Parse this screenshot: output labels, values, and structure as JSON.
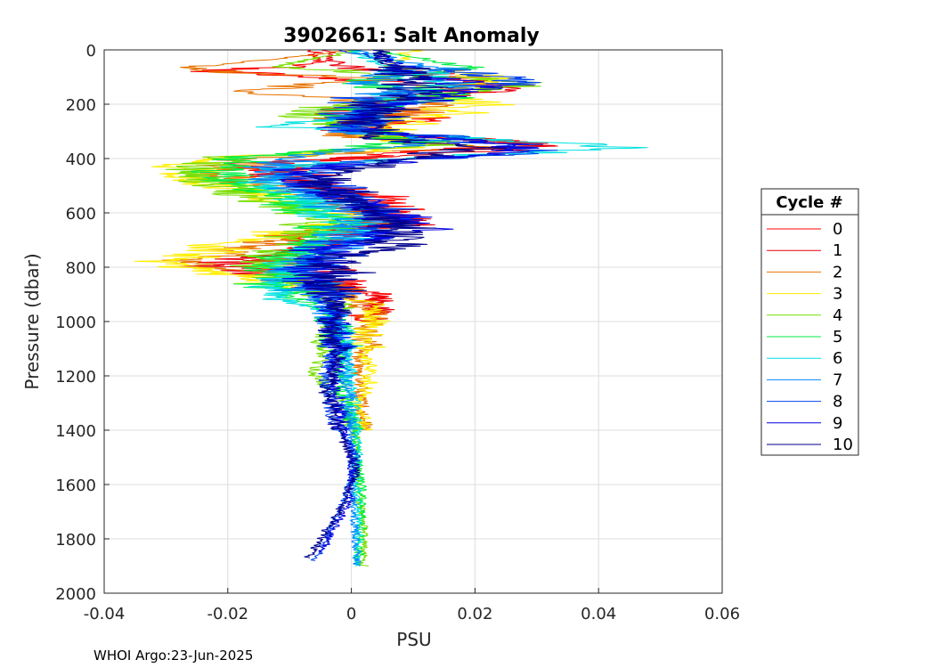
{
  "chart_data": {
    "type": "line",
    "title": "3902661: Salt Anomaly",
    "xlabel": "PSU",
    "ylabel": "Pressure (dbar)",
    "xlim": [
      -0.04,
      0.06
    ],
    "ylim": [
      0,
      2000
    ],
    "y_reversed": true,
    "grid": true,
    "x_ticks": [
      -0.04,
      -0.02,
      0,
      0.02,
      0.04,
      0.06
    ],
    "x_tick_labels": [
      "-0.04",
      "-0.02",
      "0",
      "0.02",
      "0.04",
      "0.06"
    ],
    "y_ticks": [
      0,
      200,
      400,
      600,
      800,
      1000,
      1200,
      1400,
      1600,
      1800,
      2000
    ],
    "y_tick_labels": [
      "0",
      "200",
      "400",
      "600",
      "800",
      "1000",
      "1200",
      "1400",
      "1600",
      "1800",
      "2000"
    ],
    "legend": {
      "title": "Cycle #",
      "placement": "outside-right"
    },
    "series": [
      {
        "name": "0",
        "color": "#ff0000",
        "max_pressure": 1000,
        "seed": 11,
        "points": [
          [
            0,
            -0.006
          ],
          [
            50,
            -0.005
          ],
          [
            80,
            -0.022
          ],
          [
            120,
            0.01
          ],
          [
            150,
            0.02
          ],
          [
            200,
            0.004
          ],
          [
            250,
            0.012
          ],
          [
            300,
            0.002
          ],
          [
            350,
            0.03
          ],
          [
            380,
            0.01
          ],
          [
            420,
            -0.012
          ],
          [
            480,
            -0.008
          ],
          [
            550,
            0.004
          ],
          [
            620,
            0.006
          ],
          [
            700,
            -0.008
          ],
          [
            760,
            -0.012
          ],
          [
            820,
            -0.004
          ],
          [
            880,
            0.002
          ],
          [
            920,
            0.004
          ],
          [
            1000,
            0.002
          ]
        ]
      },
      {
        "name": "1",
        "color": "#e8000b",
        "max_pressure": 1000,
        "seed": 23,
        "points": [
          [
            0,
            -0.004
          ],
          [
            60,
            -0.002
          ],
          [
            100,
            0.018
          ],
          [
            140,
            0.028
          ],
          [
            180,
            0.006
          ],
          [
            240,
            -0.004
          ],
          [
            300,
            0.0
          ],
          [
            350,
            0.032
          ],
          [
            380,
            0.015
          ],
          [
            420,
            -0.015
          ],
          [
            480,
            -0.01
          ],
          [
            560,
            0.003
          ],
          [
            640,
            0.008
          ],
          [
            720,
            -0.006
          ],
          [
            790,
            -0.02
          ],
          [
            850,
            -0.006
          ],
          [
            900,
            0.004
          ],
          [
            950,
            0.004
          ],
          [
            1000,
            0.003
          ]
        ]
      },
      {
        "name": "2",
        "color": "#e67300",
        "max_pressure": 1400,
        "seed": 37,
        "points": [
          [
            0,
            0.002
          ],
          [
            70,
            -0.028
          ],
          [
            110,
            0.006
          ],
          [
            150,
            -0.02
          ],
          [
            200,
            0.012
          ],
          [
            260,
            0.004
          ],
          [
            320,
            0.0
          ],
          [
            360,
            0.022
          ],
          [
            400,
            -0.018
          ],
          [
            460,
            -0.022
          ],
          [
            540,
            -0.006
          ],
          [
            620,
            0.004
          ],
          [
            700,
            -0.012
          ],
          [
            780,
            -0.028
          ],
          [
            840,
            -0.01
          ],
          [
            920,
            0.002
          ],
          [
            1000,
            0.004
          ],
          [
            1100,
            0.002
          ],
          [
            1250,
            0.001
          ],
          [
            1400,
            0.002
          ]
        ]
      },
      {
        "name": "3",
        "color": "#ffee00",
        "max_pressure": 1400,
        "seed": 41,
        "points": [
          [
            0,
            0.01
          ],
          [
            60,
            0.006
          ],
          [
            100,
            0.024
          ],
          [
            150,
            0.012
          ],
          [
            200,
            0.02
          ],
          [
            240,
            0.014
          ],
          [
            300,
            0.004
          ],
          [
            360,
            0.012
          ],
          [
            400,
            -0.024
          ],
          [
            460,
            -0.028
          ],
          [
            540,
            -0.014
          ],
          [
            620,
            0.0
          ],
          [
            700,
            -0.016
          ],
          [
            780,
            -0.03
          ],
          [
            850,
            -0.014
          ],
          [
            940,
            0.004
          ],
          [
            1050,
            0.002
          ],
          [
            1200,
            0.003
          ],
          [
            1300,
            0.001
          ],
          [
            1400,
            0.002
          ]
        ]
      },
      {
        "name": "4",
        "color": "#77dd00",
        "max_pressure": 1900,
        "seed": 53,
        "points": [
          [
            0,
            0.002
          ],
          [
            60,
            -0.012
          ],
          [
            120,
            0.03
          ],
          [
            180,
            0.008
          ],
          [
            230,
            -0.008
          ],
          [
            300,
            0.0
          ],
          [
            350,
            0.014
          ],
          [
            400,
            -0.022
          ],
          [
            460,
            -0.026
          ],
          [
            540,
            -0.016
          ],
          [
            620,
            -0.004
          ],
          [
            700,
            -0.008
          ],
          [
            780,
            -0.016
          ],
          [
            850,
            -0.01
          ],
          [
            940,
            -0.002
          ],
          [
            1050,
            -0.003
          ],
          [
            1190,
            -0.006
          ],
          [
            1300,
            -0.001
          ],
          [
            1450,
            0.001
          ],
          [
            1600,
            0.001
          ],
          [
            1750,
            0.002
          ],
          [
            1900,
            0.002
          ]
        ]
      },
      {
        "name": "5",
        "color": "#00ee44",
        "max_pressure": 1900,
        "seed": 67,
        "points": [
          [
            0,
            0.004
          ],
          [
            70,
            0.02
          ],
          [
            120,
            0.002
          ],
          [
            170,
            0.016
          ],
          [
            220,
            0.0
          ],
          [
            290,
            0.002
          ],
          [
            340,
            0.01
          ],
          [
            400,
            -0.018
          ],
          [
            470,
            -0.022
          ],
          [
            540,
            -0.012
          ],
          [
            620,
            -0.002
          ],
          [
            700,
            -0.004
          ],
          [
            780,
            -0.01
          ],
          [
            860,
            -0.014
          ],
          [
            950,
            -0.004
          ],
          [
            1050,
            -0.002
          ],
          [
            1200,
            -0.002
          ],
          [
            1350,
            0.0
          ],
          [
            1500,
            0.001
          ],
          [
            1700,
            0.002
          ],
          [
            1900,
            0.001
          ]
        ]
      },
      {
        "name": "6",
        "color": "#00e0e0",
        "max_pressure": 1900,
        "seed": 79,
        "points": [
          [
            0,
            0.0
          ],
          [
            60,
            0.006
          ],
          [
            120,
            0.018
          ],
          [
            180,
            0.004
          ],
          [
            240,
            0.006
          ],
          [
            280,
            -0.012
          ],
          [
            320,
            0.014
          ],
          [
            360,
            0.046
          ],
          [
            390,
            0.018
          ],
          [
            430,
            -0.01
          ],
          [
            500,
            -0.014
          ],
          [
            580,
            -0.004
          ],
          [
            660,
            0.0
          ],
          [
            740,
            -0.006
          ],
          [
            820,
            -0.01
          ],
          [
            900,
            -0.014
          ],
          [
            980,
            -0.002
          ],
          [
            1100,
            -0.001
          ],
          [
            1250,
            0.0
          ],
          [
            1450,
            0.001
          ],
          [
            1650,
            0.001
          ],
          [
            1900,
            0.001
          ]
        ]
      },
      {
        "name": "7",
        "color": "#0088ff",
        "max_pressure": 1900,
        "seed": 83,
        "points": [
          [
            0,
            0.0
          ],
          [
            70,
            0.014
          ],
          [
            120,
            0.004
          ],
          [
            180,
            0.008
          ],
          [
            240,
            0.002
          ],
          [
            300,
            0.0
          ],
          [
            340,
            0.012
          ],
          [
            400,
            -0.01
          ],
          [
            470,
            -0.012
          ],
          [
            550,
            -0.004
          ],
          [
            630,
            0.004
          ],
          [
            710,
            -0.002
          ],
          [
            790,
            -0.006
          ],
          [
            870,
            -0.008
          ],
          [
            950,
            -0.004
          ],
          [
            1050,
            -0.002
          ],
          [
            1200,
            -0.001
          ],
          [
            1400,
            0.0
          ],
          [
            1600,
            0.0
          ],
          [
            1900,
            0.001
          ]
        ]
      },
      {
        "name": "8",
        "color": "#0044ee",
        "max_pressure": 1880,
        "seed": 97,
        "points": [
          [
            0,
            -0.001
          ],
          [
            60,
            0.01
          ],
          [
            120,
            0.03
          ],
          [
            170,
            0.004
          ],
          [
            230,
            0.0
          ],
          [
            290,
            0.0
          ],
          [
            340,
            0.022
          ],
          [
            380,
            0.03
          ],
          [
            420,
            -0.004
          ],
          [
            480,
            -0.008
          ],
          [
            560,
            0.002
          ],
          [
            640,
            0.008
          ],
          [
            720,
            -0.004
          ],
          [
            790,
            -0.008
          ],
          [
            870,
            -0.004
          ],
          [
            950,
            -0.003
          ],
          [
            1050,
            -0.002
          ],
          [
            1200,
            -0.004
          ],
          [
            1350,
            -0.003
          ],
          [
            1500,
            0.001
          ],
          [
            1650,
            -0.001
          ],
          [
            1880,
            -0.006
          ]
        ]
      },
      {
        "name": "9",
        "color": "#0000dd",
        "max_pressure": 1850,
        "seed": 101,
        "points": [
          [
            0,
            0.004
          ],
          [
            70,
            0.008
          ],
          [
            130,
            0.02
          ],
          [
            180,
            0.012
          ],
          [
            240,
            0.002
          ],
          [
            300,
            0.002
          ],
          [
            350,
            0.028
          ],
          [
            390,
            0.02
          ],
          [
            440,
            -0.008
          ],
          [
            500,
            -0.006
          ],
          [
            580,
            0.004
          ],
          [
            660,
            0.01
          ],
          [
            720,
            -0.002
          ],
          [
            800,
            -0.006
          ],
          [
            880,
            -0.004
          ],
          [
            960,
            -0.003
          ],
          [
            1060,
            -0.002
          ],
          [
            1200,
            -0.003
          ],
          [
            1350,
            -0.002
          ],
          [
            1500,
            0.0
          ],
          [
            1650,
            0.0
          ],
          [
            1850,
            -0.005
          ]
        ]
      },
      {
        "name": "10",
        "color": "#00008b",
        "max_pressure": 1870,
        "seed": 113,
        "points": [
          [
            0,
            0.005
          ],
          [
            60,
            0.006
          ],
          [
            130,
            0.012
          ],
          [
            190,
            0.006
          ],
          [
            250,
            0.004
          ],
          [
            310,
            0.002
          ],
          [
            360,
            0.02
          ],
          [
            400,
            0.008
          ],
          [
            460,
            -0.004
          ],
          [
            540,
            -0.002
          ],
          [
            620,
            0.006
          ],
          [
            700,
            0.008
          ],
          [
            770,
            -0.002
          ],
          [
            850,
            -0.004
          ],
          [
            930,
            -0.002
          ],
          [
            1010,
            -0.003
          ],
          [
            1100,
            -0.002
          ],
          [
            1250,
            -0.004
          ],
          [
            1400,
            -0.002
          ],
          [
            1550,
            0.001
          ],
          [
            1700,
            -0.002
          ],
          [
            1870,
            -0.007
          ]
        ]
      }
    ]
  },
  "footer": {
    "stamp": "WHOI Argo:23-Jun-2025"
  }
}
